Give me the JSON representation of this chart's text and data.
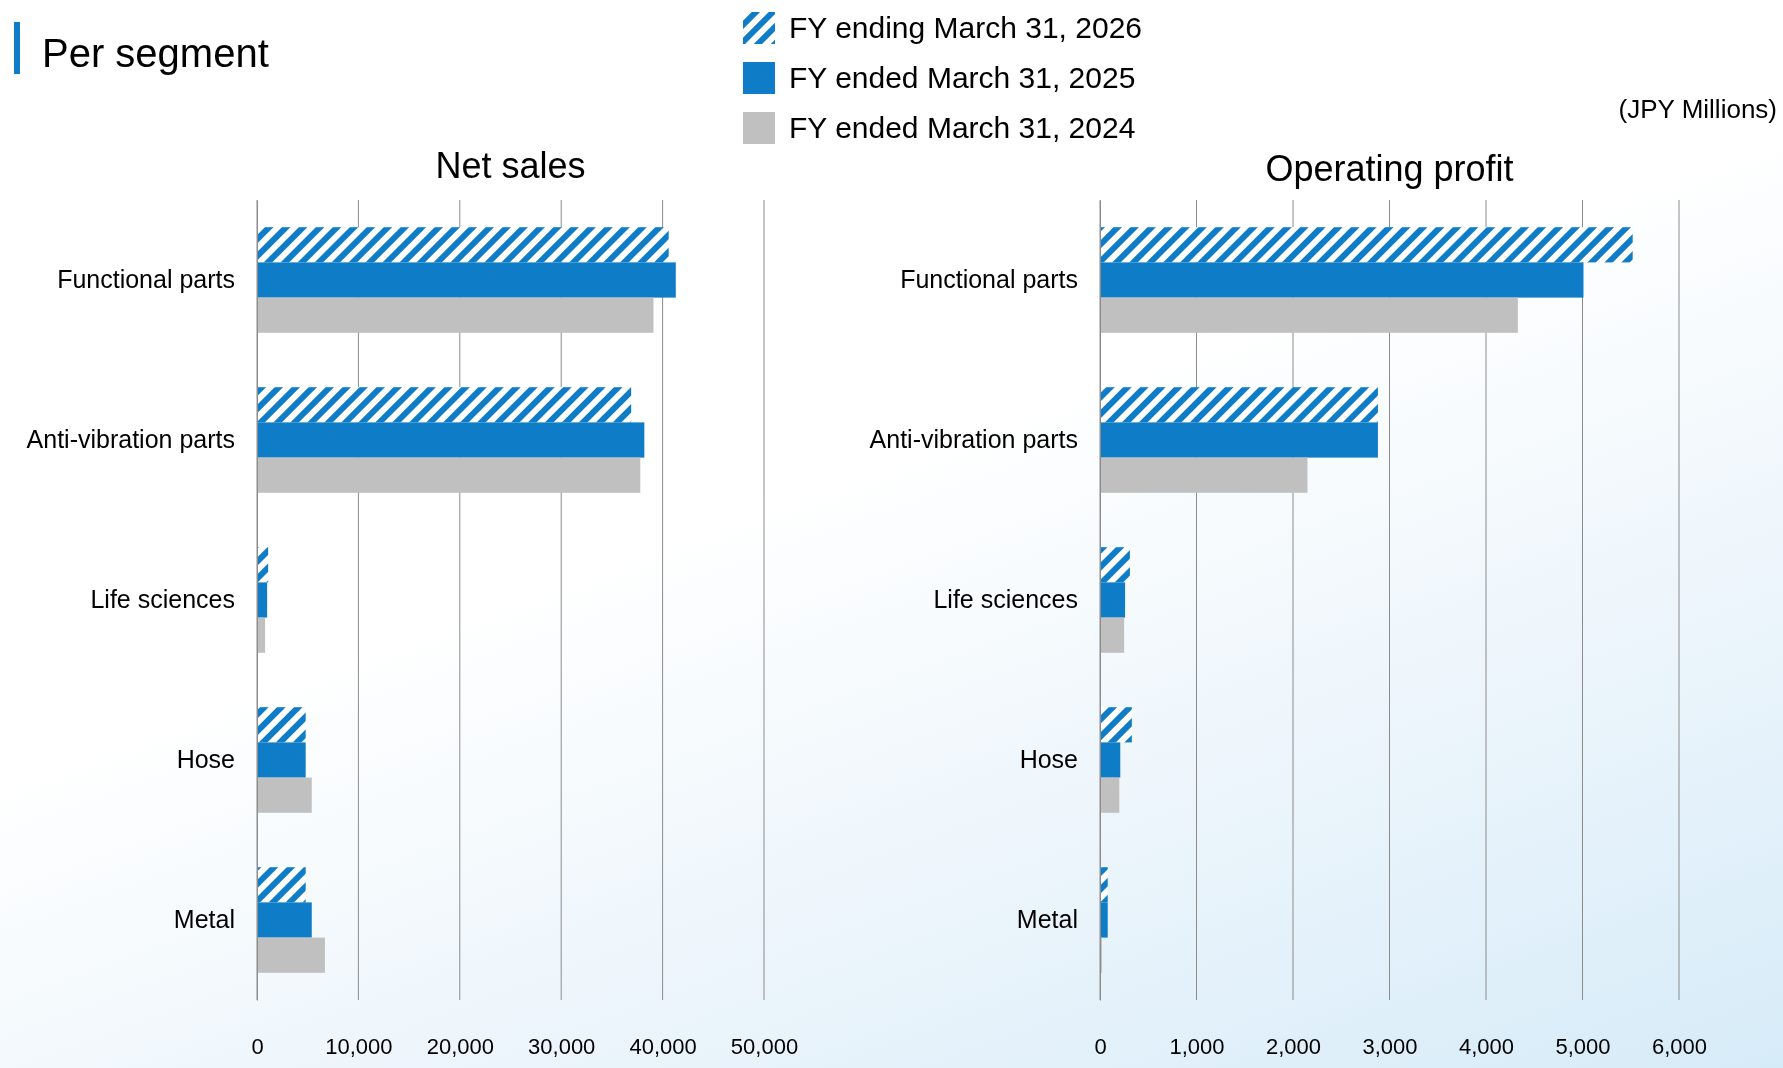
{
  "chart_data": [
    {
      "type": "bar",
      "orientation": "horizontal",
      "title": "Net sales",
      "annotations": [
        "Per segment",
        "(JPY Millions)"
      ],
      "categories": [
        "Functional parts",
        "Anti-vibration parts",
        "Life sciences",
        "Hose",
        "Metal"
      ],
      "series": [
        {
          "name": "FY ending March 31, 2026",
          "color": "#0e7cc6",
          "values": [
            40600,
            36900,
            1100,
            4800,
            4800
          ]
        },
        {
          "name": "FY ended March 31, 2025",
          "color": "#0e7cc6",
          "values": [
            41300,
            38200,
            1000,
            4800,
            5400
          ]
        },
        {
          "name": "FY ended March 31, 2024",
          "color": "#c0c0c0",
          "values": [
            39100,
            37800,
            800,
            5400,
            6700
          ]
        }
      ],
      "xlim": [
        0,
        50000
      ],
      "xticks": [
        {
          "value": 0,
          "label": "0"
        },
        {
          "value": 10000,
          "label": "10,000"
        },
        {
          "value": 20000,
          "label": "20,000"
        },
        {
          "value": 30000,
          "label": "30,000"
        },
        {
          "value": 40000,
          "label": "40,000"
        },
        {
          "value": 50000,
          "label": "50,000"
        }
      ],
      "grid": "x",
      "legend": "top"
    },
    {
      "type": "bar",
      "orientation": "horizontal",
      "title": "Operating profit",
      "categories": [
        "Functional parts",
        "Anti-vibration parts",
        "Life sciences",
        "Hose",
        "Metal"
      ],
      "series": [
        {
          "color": "#0e7cc6",
          "values": [
            5520,
            2880,
            310,
            330,
            80
          ]
        },
        {
          "color": "#0e7cc6",
          "values": [
            5010,
            2880,
            260,
            210,
            80
          ]
        },
        {
          "color": "#c0c0c0",
          "values": [
            4330,
            2150,
            250,
            200,
            20
          ]
        }
      ],
      "xlim": [
        0,
        6000
      ],
      "xticks": [
        {
          "value": 0,
          "label": "0"
        },
        {
          "value": 1000,
          "label": "1,000"
        },
        {
          "value": 2000,
          "label": "2,000"
        },
        {
          "value": 3000,
          "label": "3,000"
        },
        {
          "value": 4000,
          "label": "4,000"
        },
        {
          "value": 5000,
          "label": "5,000"
        },
        {
          "value": 6000,
          "label": "6,000"
        }
      ],
      "grid": "x"
    }
  ]
}
